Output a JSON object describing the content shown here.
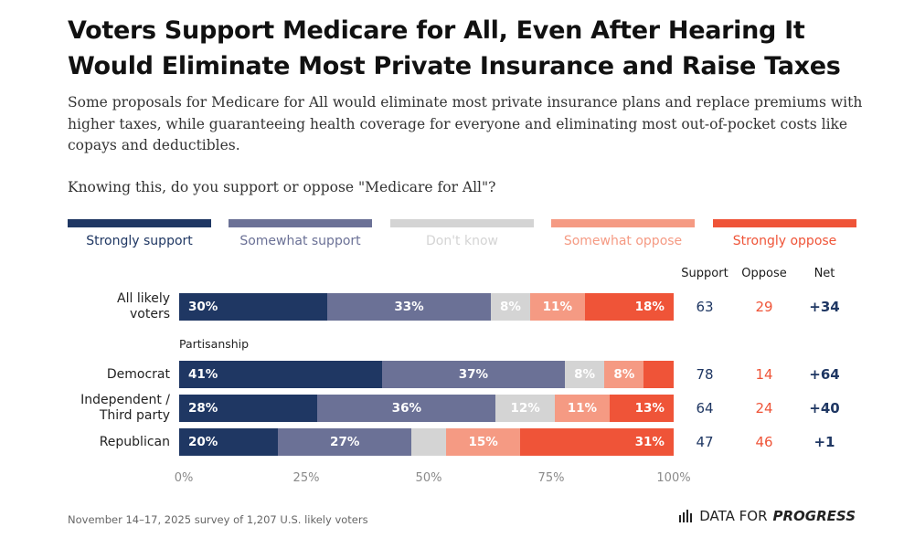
{
  "title": "Voters Support Medicare for All, Even After Hearing It Would Eliminate Most Private Insurance and Raise Taxes",
  "subtitle": "Some proposals for Medicare for All would eliminate most private insurance plans and replace premiums with higher taxes, while guaranteeing health coverage for everyone and eliminating most out-of-pocket costs like copays and deductibles.",
  "question": "Knowing this, do you support or oppose \"Medicare for All\"?",
  "columns": {
    "support": "Support",
    "oppose": "Oppose",
    "net": "Net"
  },
  "section_label": "Partisanship",
  "footnote": "November 14–17, 2025 survey of 1,207 U.S. likely voters",
  "logo": {
    "text_regular": "DATA FOR",
    "text_bold": "PROGRESS",
    "icon": "bar-chart-icon"
  },
  "colors": {
    "strongly_support": "#1f3763",
    "somewhat_support": "#6b7196",
    "dont_know": "#d4d4d4",
    "somewhat_oppose": "#f59a83",
    "strongly_oppose": "#ef5438",
    "support_text": "#1f3763",
    "oppose_text": "#ef5438"
  },
  "chart_data": {
    "type": "bar",
    "orientation": "horizontal-stacked",
    "series_names": [
      "Strongly support",
      "Somewhat support",
      "Don't know",
      "Somewhat oppose",
      "Strongly oppose"
    ],
    "categories": [
      "All likely voters",
      "Democrat",
      "Independent / Third party",
      "Republican"
    ],
    "category_display": [
      "All likely\nvoters",
      "Democrat",
      "Independent /\nThird party",
      "Republican"
    ],
    "values": [
      [
        30,
        33,
        8,
        11,
        18
      ],
      [
        41,
        37,
        8,
        8,
        6
      ],
      [
        28,
        36,
        12,
        11,
        13
      ],
      [
        20,
        27,
        7,
        15,
        31
      ]
    ],
    "labels": [
      [
        "30%",
        "33%",
        "8%",
        "11%",
        "18%"
      ],
      [
        "41%",
        "37%",
        "8%",
        "8%",
        ""
      ],
      [
        "28%",
        "36%",
        "12%",
        "11%",
        "13%"
      ],
      [
        "20%",
        "27%",
        "",
        "15%",
        "31%"
      ]
    ],
    "support": [
      63,
      78,
      64,
      47
    ],
    "oppose": [
      29,
      14,
      24,
      46
    ],
    "net": [
      "+34",
      "+64",
      "+40",
      "+1"
    ],
    "xticks": [
      "0%",
      "25%",
      "50%",
      "75%",
      "100%"
    ],
    "xlim": [
      0,
      100
    ]
  }
}
